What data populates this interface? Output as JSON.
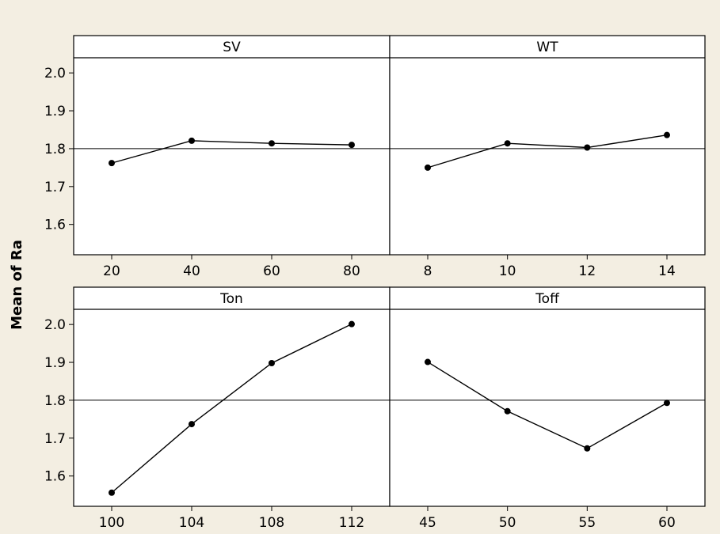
{
  "chart_data": {
    "type": "line",
    "ylabel": "Mean of Ra",
    "ylim": [
      1.52,
      2.04
    ],
    "y_ticks": [
      "1.6",
      "1.7",
      "1.8",
      "1.9",
      "2.0"
    ],
    "reference_line": 1.8,
    "panels": [
      {
        "name": "SV",
        "categories": [
          "20",
          "40",
          "60",
          "80"
        ],
        "values": [
          1.762,
          1.821,
          1.814,
          1.81
        ]
      },
      {
        "name": "WT",
        "categories": [
          "8",
          "10",
          "12",
          "14"
        ],
        "values": [
          1.75,
          1.814,
          1.803,
          1.836
        ]
      },
      {
        "name": "Ton",
        "categories": [
          "100",
          "104",
          "108",
          "112"
        ],
        "values": [
          1.556,
          1.737,
          1.898,
          2.001
        ]
      },
      {
        "name": "Toff",
        "categories": [
          "45",
          "50",
          "55",
          "60"
        ],
        "values": [
          1.901,
          1.771,
          1.673,
          1.793
        ]
      }
    ],
    "colors": {
      "background": "#f3eee2",
      "panel": "#ffffff",
      "line": "#000000"
    }
  }
}
